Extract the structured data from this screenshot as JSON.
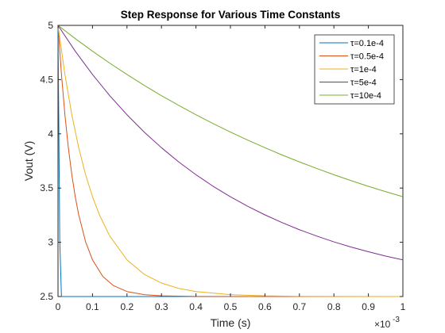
{
  "chart_data": {
    "type": "line",
    "title": "Step Response for Various Time Constants",
    "xlabel": "Time (s)",
    "ylabel": "Vout (V)",
    "x_exponent_label": "×10",
    "x_exponent_power": "-3",
    "xlim": [
      0,
      1
    ],
    "ylim": [
      2.5,
      5
    ],
    "xticks": [
      0,
      0.1,
      0.2,
      0.3,
      0.4,
      0.5,
      0.6,
      0.7,
      0.8,
      0.9,
      1
    ],
    "xtick_labels": [
      "0",
      "0.1",
      "0.2",
      "0.3",
      "0.4",
      "0.5",
      "0.6",
      "0.7",
      "0.8",
      "0.9",
      "1"
    ],
    "yticks": [
      2.5,
      3,
      3.5,
      4,
      4.5,
      5
    ],
    "ytick_labels": [
      "2.5",
      "3",
      "3.5",
      "4",
      "4.5",
      "5"
    ],
    "grid": false,
    "legend_position": "top-right",
    "x_units_note": "x values in units of 1e-3 s",
    "series": [
      {
        "name": "τ=0.1e-4",
        "color": "#0072BD",
        "x": [
          0,
          0.005,
          0.01,
          0.015,
          0.02,
          0.03,
          0.04,
          0.05,
          0.07,
          0.1,
          1
        ],
        "y": [
          5,
          3.016,
          2.5,
          2.5,
          2.5,
          2.5,
          2.5,
          2.5,
          2.5,
          2.5,
          2.5
        ]
      },
      {
        "name": "τ=0.5e-4",
        "color": "#D95319",
        "x": [
          0,
          0.01,
          0.02,
          0.03,
          0.04,
          0.05,
          0.06,
          0.08,
          0.1,
          0.13,
          0.16,
          0.2,
          0.25,
          0.3,
          0.4,
          0.6,
          1
        ],
        "y": [
          5,
          4.547,
          4.176,
          3.872,
          3.623,
          3.42,
          3.253,
          3.004,
          2.838,
          2.685,
          2.602,
          2.546,
          2.517,
          2.506,
          2.501,
          2.5,
          2.5
        ]
      },
      {
        "name": "τ=1e-4",
        "color": "#EDB120",
        "x": [
          0,
          0.02,
          0.04,
          0.06,
          0.08,
          0.1,
          0.12,
          0.15,
          0.2,
          0.25,
          0.3,
          0.35,
          0.4,
          0.5,
          0.6,
          0.7,
          0.8,
          1
        ],
        "y": [
          5,
          4.547,
          4.176,
          3.872,
          3.623,
          3.42,
          3.253,
          3.058,
          2.838,
          2.705,
          2.624,
          2.575,
          2.546,
          2.517,
          2.506,
          2.502,
          2.501,
          2.5
        ]
      },
      {
        "name": "τ=5e-4",
        "color": "#7E2F8E",
        "x": [
          0,
          0.05,
          0.1,
          0.15,
          0.2,
          0.25,
          0.3,
          0.35,
          0.4,
          0.45,
          0.5,
          0.55,
          0.6,
          0.65,
          0.7,
          0.75,
          0.8,
          0.85,
          0.9,
          0.95,
          1
        ],
        "y": [
          5,
          4.762,
          4.547,
          4.352,
          4.176,
          4.016,
          3.872,
          3.741,
          3.623,
          3.516,
          3.42,
          3.332,
          3.253,
          3.181,
          3.116,
          3.058,
          3.004,
          2.956,
          2.913,
          2.873,
          2.838
        ]
      },
      {
        "name": "τ=10e-4",
        "color": "#77AC30",
        "x": [
          0,
          0.05,
          0.1,
          0.15,
          0.2,
          0.25,
          0.3,
          0.35,
          0.4,
          0.45,
          0.5,
          0.55,
          0.6,
          0.65,
          0.7,
          0.75,
          0.8,
          0.85,
          0.9,
          0.95,
          1
        ],
        "y": [
          5,
          4.878,
          4.762,
          4.652,
          4.547,
          4.447,
          4.352,
          4.262,
          4.176,
          4.094,
          4.016,
          3.942,
          3.872,
          3.805,
          3.741,
          3.681,
          3.623,
          3.568,
          3.516,
          3.467,
          3.42
        ]
      }
    ]
  }
}
